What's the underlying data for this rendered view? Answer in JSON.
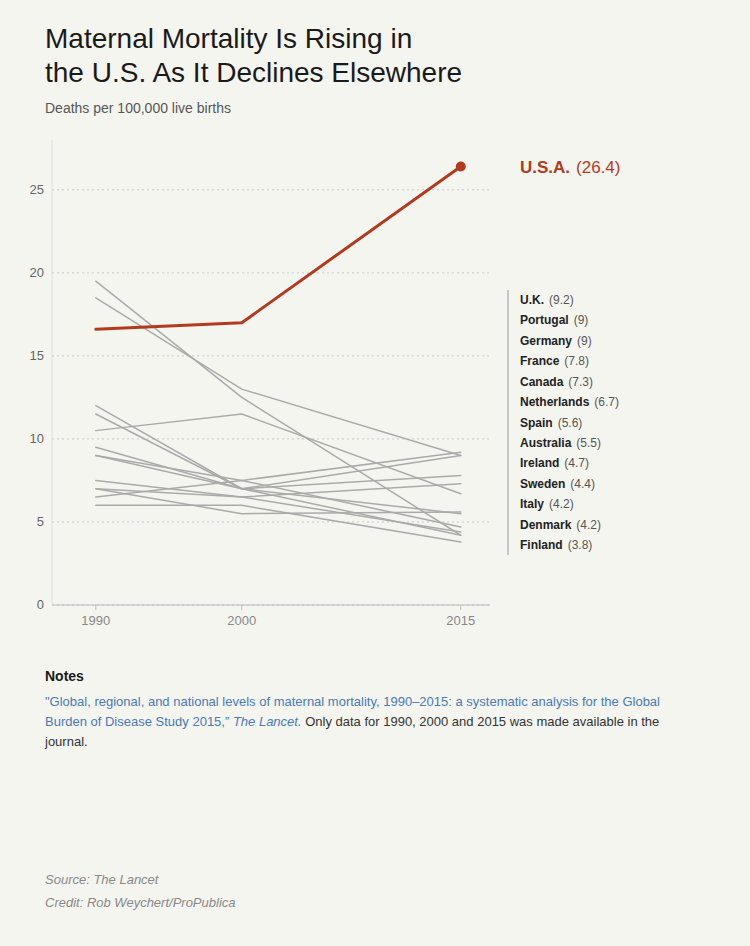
{
  "chart_data": {
    "type": "line",
    "title": "Maternal Mortality Is Rising in\nthe U.S. As It Declines Elsewhere",
    "subtitle": "Deaths per 100,000 live births",
    "x": [
      1990,
      2000,
      2015
    ],
    "series": [
      {
        "name": "U.S.A.",
        "color": "#b33a1e",
        "values": [
          16.6,
          17.0,
          26.4
        ],
        "end_label": "(26.4)",
        "marker": "circle"
      },
      {
        "name": "U.K.",
        "color": "#aaaaaa",
        "values": [
          9.0,
          7.5,
          9.2
        ],
        "end_label": "(9.2)"
      },
      {
        "name": "Portugal",
        "color": "#aaaaaa",
        "values": [
          18.5,
          13.0,
          9.0
        ],
        "end_label": "(9)"
      },
      {
        "name": "Germany",
        "color": "#aaaaaa",
        "values": [
          11.5,
          7.0,
          9.0
        ],
        "end_label": "(9)"
      },
      {
        "name": "France",
        "color": "#aaaaaa",
        "values": [
          12.0,
          7.0,
          7.8
        ],
        "end_label": "(7.8)"
      },
      {
        "name": "Canada",
        "color": "#aaaaaa",
        "values": [
          7.5,
          6.5,
          7.3
        ],
        "end_label": "(7.3)"
      },
      {
        "name": "Netherlands",
        "color": "#aaaaaa",
        "values": [
          10.5,
          11.5,
          6.7
        ],
        "end_label": "(6.7)"
      },
      {
        "name": "Spain",
        "color": "#aaaaaa",
        "values": [
          7.0,
          5.5,
          5.6
        ],
        "end_label": "(5.6)"
      },
      {
        "name": "Australia",
        "color": "#aaaaaa",
        "values": [
          9.5,
          7.0,
          5.5
        ],
        "end_label": "(5.5)"
      },
      {
        "name": "Ireland",
        "color": "#aaaaaa",
        "values": [
          6.5,
          7.5,
          4.7
        ],
        "end_label": "(4.7)"
      },
      {
        "name": "Sweden",
        "color": "#aaaaaa",
        "values": [
          7.0,
          6.5,
          4.4
        ],
        "end_label": "(4.4)"
      },
      {
        "name": "Italy",
        "color": "#aaaaaa",
        "values": [
          19.5,
          12.5,
          4.2
        ],
        "end_label": "(4.2)"
      },
      {
        "name": "Denmark",
        "color": "#aaaaaa",
        "values": [
          9.0,
          7.0,
          4.2
        ],
        "end_label": "(4.2)"
      },
      {
        "name": "Finland",
        "color": "#aaaaaa",
        "values": [
          6.0,
          6.0,
          3.8
        ],
        "end_label": "(3.8)"
      }
    ],
    "xlim": [
      1987,
      2017
    ],
    "xticks": [
      1990,
      2000,
      2015
    ],
    "ylim": [
      0,
      28
    ],
    "yticks": [
      0,
      5,
      10,
      15,
      20,
      25
    ],
    "grid": true,
    "background_color": "#f5f5f0",
    "notes_title": "Notes",
    "notes_citation": "\"Global, regional, and national levels of maternal mortality, 1990–2015: a systematic analysis for the Global Burden of Disease Study 2015,” ",
    "notes_journal": "The Lancet.",
    "notes_text": " Only data for 1990, 2000 and 2015 was made available in the journal.",
    "notes_link_color": "#4a7ab5",
    "notes_color": "#333333",
    "source_text": "Source: The Lancet",
    "credit_text": "Credit: Rob Weychert/ProPublica"
  }
}
